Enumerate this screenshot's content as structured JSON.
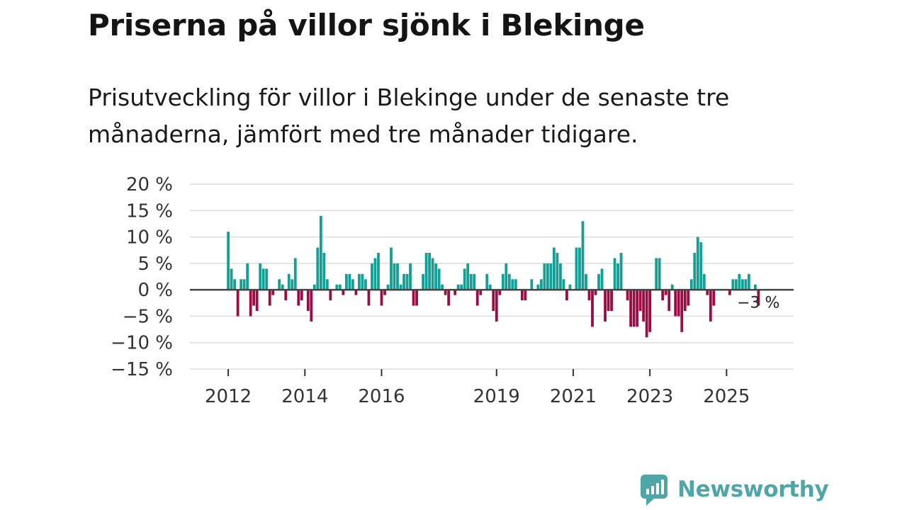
{
  "header": {
    "title": "Priserna på villor sjönk i Blekinge",
    "subtitle": "Prisutveckling för villor i Blekinge under de senaste tre månaderna, jämfört med tre månader tidigare."
  },
  "brand": {
    "name": "Newsworthy",
    "icon": "newsworthy-logo-icon",
    "color": "#4fa6a6"
  },
  "colors": {
    "positive": "#129f95",
    "negative": "#9b0c44",
    "grid": "#dddddd",
    "zero": "#444444"
  },
  "chart_data": {
    "type": "bar",
    "title": "Priserna på villor sjönk i Blekinge",
    "xlabel": "",
    "ylabel": "",
    "ylim": [
      -15,
      20
    ],
    "xlim": [
      2011.0,
      2026.75
    ],
    "y_ticks": [
      20,
      15,
      10,
      5,
      0,
      -5,
      -10,
      -15
    ],
    "y_tick_labels": [
      "20 %",
      "15 %",
      "10 %",
      "5 %",
      "0 %",
      "−5 %",
      "−10 %",
      "−15 %"
    ],
    "x_ticks": [
      2012,
      2014,
      2016,
      2019,
      2021,
      2023,
      2025
    ],
    "x_tick_labels": [
      "2012",
      "2014",
      "2016",
      "2019",
      "2021",
      "2023",
      "2025"
    ],
    "grid": true,
    "annotation": {
      "label": "−3 %",
      "value": -3
    },
    "series": [
      {
        "name": "Prisutveckling",
        "start": 2012.0,
        "step": 0.0833333,
        "values": [
          11,
          4,
          2,
          -5,
          2,
          2,
          5,
          -5,
          -3,
          -4,
          5,
          4,
          4,
          -3,
          -1,
          0,
          2,
          1,
          -2,
          3,
          2,
          6,
          -3,
          -2,
          0,
          -4,
          -6,
          1,
          8,
          14,
          7,
          2,
          -2,
          0,
          1,
          1,
          -1,
          3,
          3,
          2,
          -1,
          3,
          3,
          2,
          -3,
          5,
          6,
          7,
          -3,
          -1,
          1,
          8,
          5,
          5,
          1,
          3,
          3,
          5,
          -3,
          -3,
          0,
          3,
          7,
          7,
          6,
          5,
          4,
          1,
          -1,
          -3,
          0,
          -1,
          1,
          1,
          4,
          5,
          3,
          3,
          -3,
          -1,
          0,
          3,
          1,
          -4,
          -6,
          -1,
          3,
          5,
          3,
          2,
          2,
          0,
          -2,
          -2,
          0,
          2,
          0,
          1,
          2,
          5,
          5,
          5,
          8,
          7,
          5,
          2,
          -2,
          1,
          0,
          8,
          8,
          13,
          3,
          -2,
          -7,
          -1,
          3,
          4,
          -6,
          -4,
          -4,
          6,
          5,
          7,
          0,
          -2,
          -7,
          -7,
          -7,
          -4,
          -6,
          -9,
          -8,
          0,
          6,
          6,
          -2,
          -1,
          -4,
          1,
          -5,
          -5,
          -8,
          -4,
          -3,
          2,
          7,
          10,
          9,
          3,
          -1,
          -6,
          -3,
          0,
          0,
          0,
          0,
          -1,
          2,
          2,
          3,
          2,
          2,
          3,
          0,
          1,
          -3
        ]
      }
    ]
  }
}
